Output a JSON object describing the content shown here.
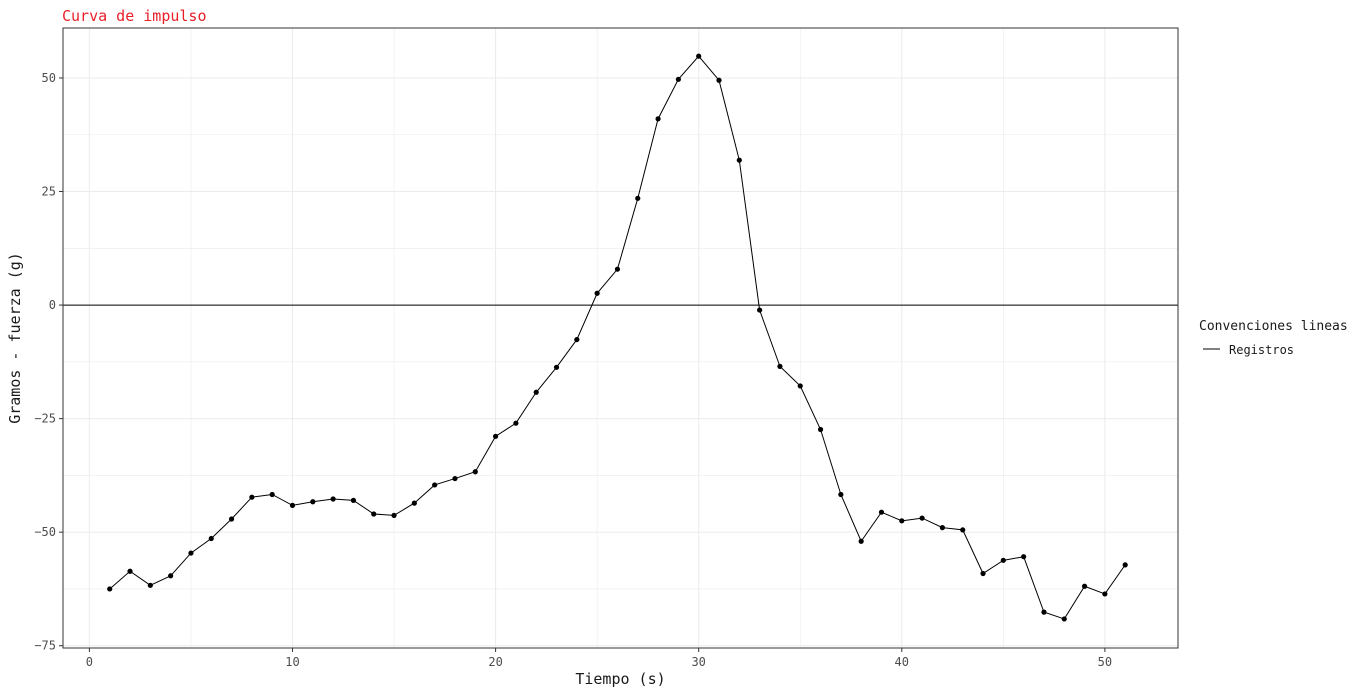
{
  "chart_data": {
    "type": "line",
    "title": "Curva de impulso",
    "xlabel": "Tiempo (s)",
    "ylabel": "Gramos - fuerza (g)",
    "xlim": [
      -1.3,
      53.6
    ],
    "ylim": [
      -75.5,
      61
    ],
    "x_ticks": [
      0,
      10,
      20,
      30,
      40,
      50
    ],
    "y_ticks": [
      -75,
      -50,
      -25,
      0,
      25,
      50
    ],
    "grid": true,
    "reference_line_y": 0,
    "legend": {
      "title": "Convenciones lineas",
      "position": "right"
    },
    "series": [
      {
        "name": "Registros",
        "color": "#000000",
        "x": [
          1,
          2,
          3,
          4,
          5,
          6,
          7,
          8,
          9,
          10,
          11,
          12,
          13,
          14,
          15,
          16,
          17,
          18,
          19,
          20,
          21,
          22,
          23,
          24,
          25,
          26,
          27,
          28,
          29,
          30,
          31,
          32,
          33,
          34,
          35,
          36,
          37,
          38,
          39,
          40,
          41,
          42,
          43,
          44,
          45,
          46,
          47,
          48,
          49,
          50,
          51
        ],
        "values": [
          -62.5,
          -58.6,
          -61.7,
          -59.6,
          -54.6,
          -51.4,
          -47.1,
          -42.3,
          -41.7,
          -44.1,
          -43.3,
          -42.7,
          -43.0,
          -46.0,
          -46.3,
          -43.6,
          -39.6,
          -38.2,
          -36.7,
          -28.9,
          -26.0,
          -19.2,
          -13.7,
          -7.6,
          2.6,
          7.9,
          23.5,
          41.0,
          49.7,
          54.8,
          49.5,
          31.9,
          -1.1,
          -13.5,
          -17.8,
          -27.4,
          -41.7,
          -52.0,
          -45.6,
          -47.5,
          -46.9,
          -49.0,
          -49.5,
          -59.1,
          -56.2,
          -55.4,
          -67.6,
          -69.1,
          -61.9,
          -63.6,
          -57.2
        ]
      }
    ]
  }
}
